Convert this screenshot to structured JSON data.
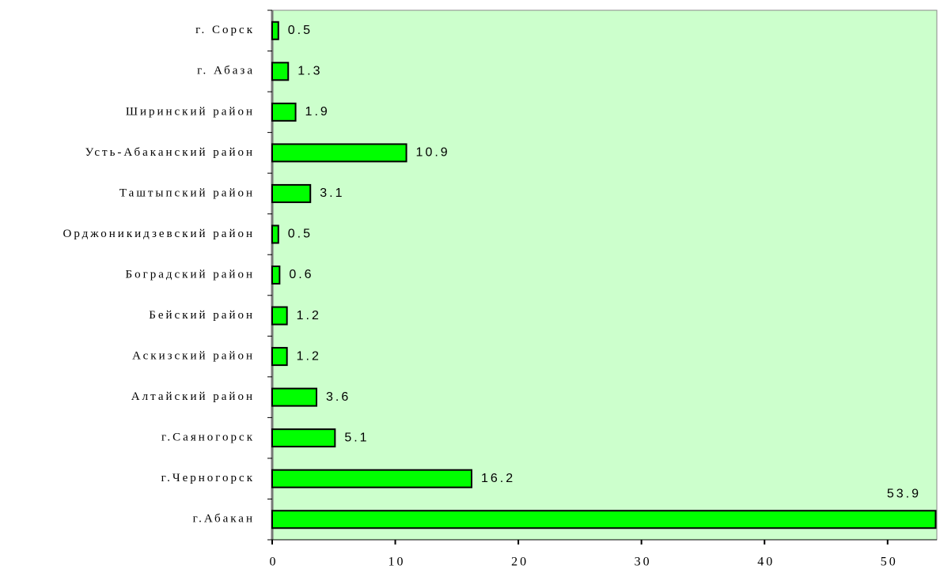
{
  "chart_data": {
    "type": "hbar",
    "categories": [
      "г. Сорск",
      "г. Абаза",
      "Ширинский район",
      "Усть-Абаканский район",
      "Таштыпский район",
      "Орджоникидзевский район",
      "Боградский район",
      "Бейский район",
      "Аскизский район",
      "Алтайский район",
      "г.Саяногорск",
      "г.Черногорск",
      "г.Абакан"
    ],
    "values": [
      0.5,
      1.3,
      1.9,
      10.9,
      3.1,
      0.5,
      0.6,
      1.2,
      1.2,
      3.6,
      5.1,
      16.2,
      53.9
    ],
    "color": "#00ff00",
    "xlim": [
      0,
      54
    ],
    "xticks": [
      0,
      10,
      20,
      30,
      40,
      50
    ],
    "background": "#ccffcc"
  }
}
